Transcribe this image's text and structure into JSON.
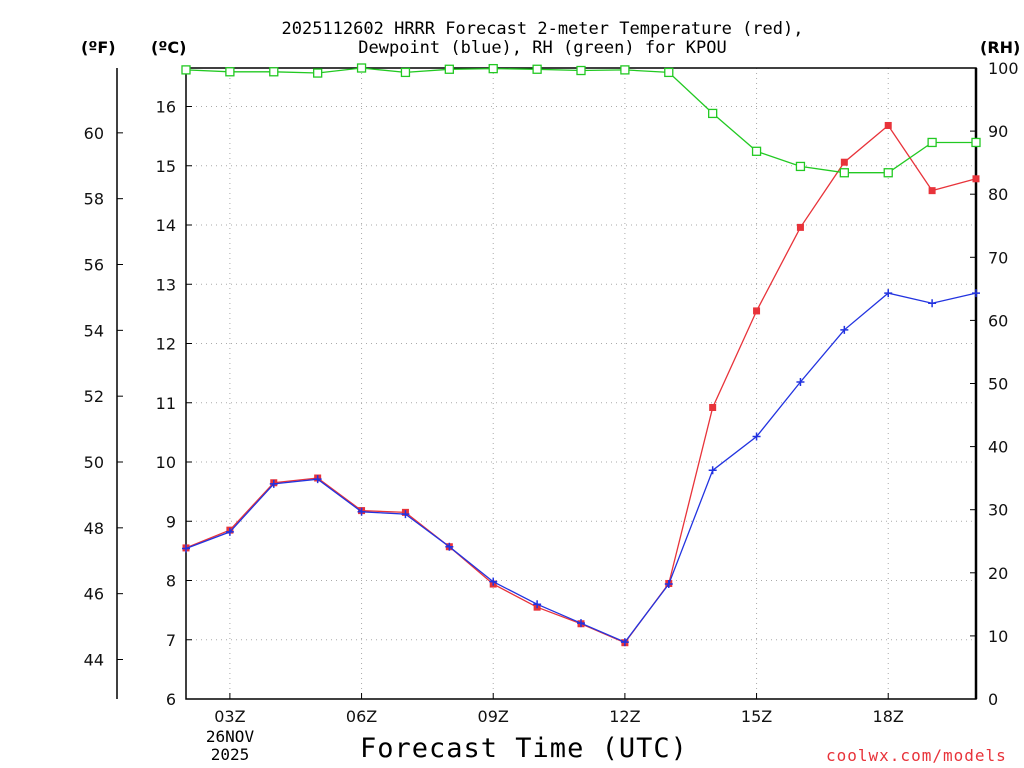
{
  "chart_data": {
    "type": "line",
    "title": [
      "2025112602 HRRR Forecast 2-meter Temperature (red),",
      "Dewpoint (blue), RH (green) for KPOU"
    ],
    "xlabel": "Forecast Time (UTC)",
    "date_line1": "26NOV",
    "date_line2": "2025",
    "unit_labels": {
      "fahrenheit": "(ºF)",
      "celsius": "(ºC)",
      "rh": "(RH)"
    },
    "credit": "coolwx.com/models",
    "x_hours": [
      2,
      3,
      4,
      5,
      6,
      7,
      8,
      9,
      10,
      11,
      12,
      13,
      14,
      15,
      16,
      17,
      18,
      19,
      20
    ],
    "x_range": [
      2,
      20
    ],
    "x_ticks": [
      3,
      6,
      9,
      12,
      15,
      18
    ],
    "x_tick_labels": [
      "03Z",
      "06Z",
      "09Z",
      "12Z",
      "15Z",
      "18Z"
    ],
    "y_celsius": {
      "range": [
        6,
        16.65
      ],
      "ticks": [
        6,
        7,
        8,
        9,
        10,
        11,
        12,
        13,
        14,
        15,
        16
      ],
      "tick_labels": [
        "6",
        "7",
        "8",
        "9",
        "10",
        "11",
        "12",
        "13",
        "14",
        "15",
        "16"
      ]
    },
    "y_fahrenheit": {
      "ticks": [
        44,
        46,
        48,
        50,
        52,
        54,
        56,
        58,
        60
      ],
      "tick_labels": [
        "44",
        "46",
        "48",
        "50",
        "52",
        "54",
        "56",
        "58",
        "60"
      ]
    },
    "y_rh": {
      "range": [
        0,
        100
      ],
      "ticks": [
        0,
        10,
        20,
        30,
        40,
        50,
        60,
        70,
        80,
        90,
        100
      ],
      "tick_labels": [
        "0",
        "10",
        "20",
        "30",
        "40",
        "50",
        "60",
        "70",
        "80",
        "90",
        "100"
      ]
    },
    "series": [
      {
        "name": "Temperature",
        "color": "#e8333a",
        "marker": "square-filled",
        "axis": "celsius",
        "values": [
          8.55,
          8.85,
          9.65,
          9.73,
          9.18,
          9.15,
          8.57,
          7.94,
          7.55,
          7.27,
          6.95,
          7.95,
          10.92,
          12.55,
          13.96,
          15.06,
          15.68,
          14.58,
          14.78
        ]
      },
      {
        "name": "Dewpoint",
        "color": "#2233e0",
        "marker": "plus",
        "axis": "celsius",
        "values": [
          8.54,
          8.82,
          9.63,
          9.71,
          9.16,
          9.12,
          8.57,
          7.98,
          7.6,
          7.28,
          6.96,
          7.94,
          9.86,
          10.43,
          11.35,
          12.23,
          12.85,
          12.68,
          12.85
        ]
      },
      {
        "name": "RH",
        "color": "#22c922",
        "marker": "square-open",
        "axis": "rh",
        "values": [
          99.7,
          99.4,
          99.4,
          99.2,
          100,
          99.3,
          99.8,
          99.9,
          99.8,
          99.6,
          99.7,
          99.3,
          92.8,
          86.8,
          84.4,
          83.4,
          83.4,
          88.2,
          88.2
        ]
      }
    ]
  }
}
